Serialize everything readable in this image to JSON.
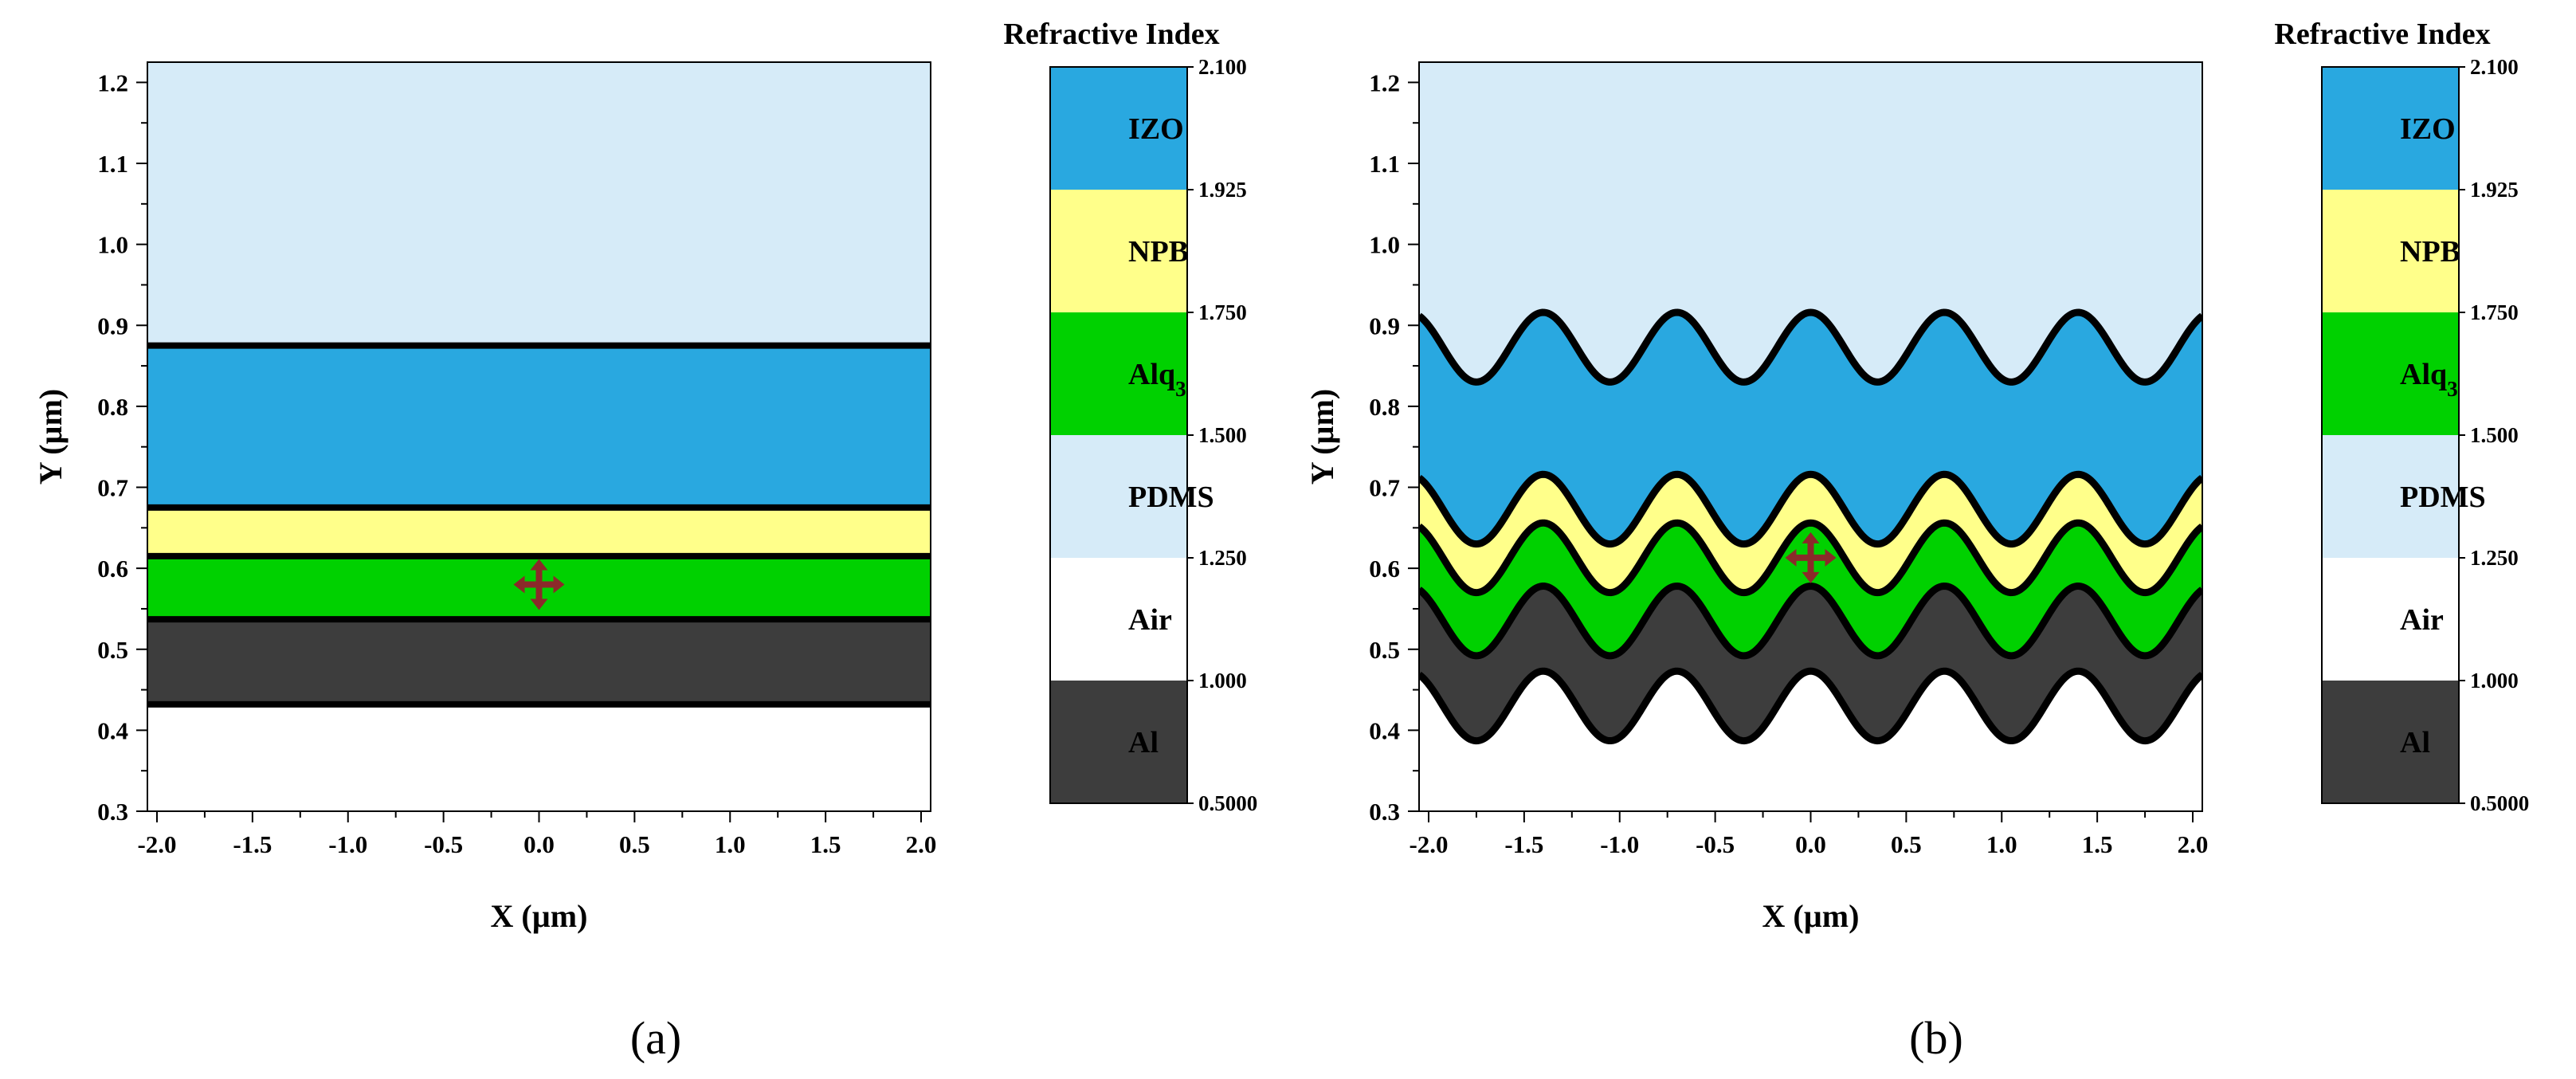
{
  "colors": {
    "Al": "#3d3d3d",
    "Air": "#ffffff",
    "PDMS": "#d6ebf8",
    "Alq3": "#00d100",
    "NPB": "#ffff8a",
    "IZO": "#29a8e0",
    "boundary": "#000000",
    "source": "#8b2a2a"
  },
  "chart_data": [
    {
      "type": "heatmap",
      "panel_label": "(a)",
      "structure": "planar",
      "xlabel": "X (µm)",
      "ylabel": "Y (µm)",
      "xlim": [
        -2.05,
        2.05
      ],
      "ylim": [
        0.3,
        1.225
      ],
      "x_ticks": [
        -2.0,
        -1.5,
        -1.0,
        -0.5,
        0.0,
        0.5,
        1.0,
        1.5,
        2.0
      ],
      "x_tick_labels": [
        "-2.0",
        "-1.5",
        "-1.0",
        "-0.5",
        "0.0",
        "0.5",
        "1.0",
        "1.5",
        "2.0"
      ],
      "y_ticks": [
        0.3,
        0.4,
        0.5,
        0.6,
        0.7,
        0.8,
        0.9,
        1.0,
        1.1,
        1.2
      ],
      "y_tick_labels": [
        "0.3",
        "0.4",
        "0.5",
        "0.6",
        "0.7",
        "0.8",
        "0.9",
        "1.0",
        "1.1",
        "1.2"
      ],
      "background_material": "PDMS",
      "bottom_material": "Air",
      "layers": [
        {
          "material": "IZO",
          "top": 0.875,
          "bottom": 0.675
        },
        {
          "material": "NPB",
          "top": 0.675,
          "bottom": 0.615
        },
        {
          "material": "Alq3",
          "top": 0.615,
          "bottom": 0.537
        },
        {
          "material": "Al",
          "top": 0.537,
          "bottom": 0.432
        }
      ],
      "source": {
        "x": 0.0,
        "y": 0.58
      },
      "colorbar": {
        "title": "Refractive Index",
        "segments": [
          {
            "material": "IZO",
            "label": "IZO"
          },
          {
            "material": "NPB",
            "label": "NPB"
          },
          {
            "material": "Alq3",
            "label": "Alq"
          },
          {
            "material": "PDMS",
            "label": "PDMS"
          },
          {
            "material": "Air",
            "label": "Air"
          },
          {
            "material": "Al",
            "label": "Al"
          }
        ],
        "alq_subscript": "3",
        "boundary_values": [
          "2.100",
          "1.925",
          "1.750",
          "1.500",
          "1.250",
          "1.000",
          "0.5000"
        ]
      }
    },
    {
      "type": "heatmap",
      "panel_label": "(b)",
      "structure": "corrugated",
      "xlabel": "X (µm)",
      "ylabel": "Y (µm)",
      "xlim": [
        -2.05,
        2.05
      ],
      "ylim": [
        0.3,
        1.225
      ],
      "x_ticks": [
        -2.0,
        -1.5,
        -1.0,
        -0.5,
        0.0,
        0.5,
        1.0,
        1.5,
        2.0
      ],
      "x_tick_labels": [
        "-2.0",
        "-1.5",
        "-1.0",
        "-0.5",
        "0.0",
        "0.5",
        "1.0",
        "1.5",
        "2.0"
      ],
      "y_ticks": [
        0.3,
        0.4,
        0.5,
        0.6,
        0.7,
        0.8,
        0.9,
        1.0,
        1.1,
        1.2
      ],
      "y_tick_labels": [
        "0.3",
        "0.4",
        "0.5",
        "0.6",
        "0.7",
        "0.8",
        "0.9",
        "1.0",
        "1.1",
        "1.2"
      ],
      "background_material": "PDMS",
      "bottom_material": "Air",
      "grating_period": 0.7,
      "grating_amplitude": 0.043,
      "layers": [
        {
          "material": "IZO",
          "top": 0.873,
          "bottom": 0.673
        },
        {
          "material": "NPB",
          "top": 0.673,
          "bottom": 0.613
        },
        {
          "material": "Alq3",
          "top": 0.613,
          "bottom": 0.535
        },
        {
          "material": "Al",
          "top": 0.535,
          "bottom": 0.43
        }
      ],
      "source": {
        "x": 0.0,
        "y": 0.613
      },
      "colorbar": {
        "title": "Refractive Index",
        "segments": [
          {
            "material": "IZO",
            "label": "IZO"
          },
          {
            "material": "NPB",
            "label": "NPB"
          },
          {
            "material": "Alq3",
            "label": "Alq"
          },
          {
            "material": "PDMS",
            "label": "PDMS"
          },
          {
            "material": "Air",
            "label": "Air"
          },
          {
            "material": "Al",
            "label": "Al"
          }
        ],
        "alq_subscript": "3",
        "boundary_values": [
          "2.100",
          "1.925",
          "1.750",
          "1.500",
          "1.250",
          "1.000",
          "0.5000"
        ]
      }
    }
  ]
}
